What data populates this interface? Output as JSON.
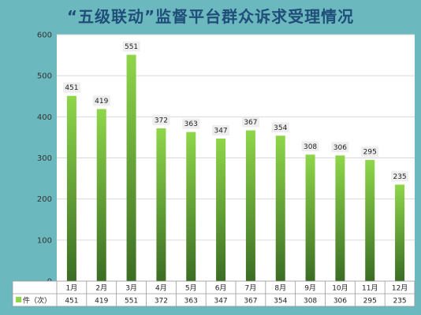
{
  "title": "“五级联动”监督平台群众诉求受理情况",
  "colors": {
    "background": "#6cb8bf",
    "plot_area": "#ffffff",
    "bar_top": "#8fd64a",
    "bar_bottom": "#3b6d24",
    "grid": "#d9d9d9",
    "title": "#1f4e79"
  },
  "chart_data": {
    "type": "bar",
    "categories": [
      "1月",
      "2月",
      "3月",
      "4月",
      "5月",
      "6月",
      "7月",
      "8月",
      "9月",
      "10月",
      "11月",
      "12月"
    ],
    "series": [
      {
        "name": "件（次）",
        "values": [
          451,
          419,
          551,
          372,
          363,
          347,
          367,
          354,
          308,
          306,
          295,
          235
        ]
      }
    ],
    "ylim": [
      0,
      600
    ],
    "yticks": [
      0,
      100,
      200,
      300,
      400,
      500,
      600
    ],
    "grid": true,
    "data_labels": true,
    "data_table": true
  }
}
